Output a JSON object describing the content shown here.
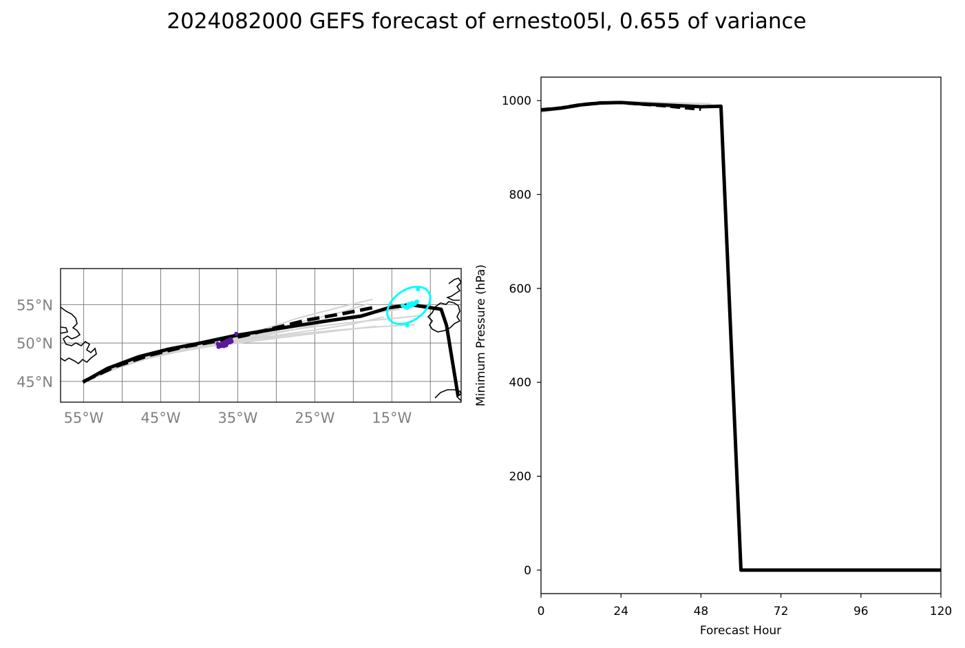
{
  "title": "2024082000 GEFS forecast of ernesto05l, 0.655 of variance",
  "colors": {
    "mean_track": "#000000",
    "ensemble_members": "#d3d3d3",
    "early_points": "#5a1a9a",
    "late_points": "#00ffff",
    "grid": "#808080",
    "coast": "#000000"
  },
  "chart_data": [
    {
      "type": "map",
      "xlabel": "",
      "ylabel": "",
      "lon_range": [
        -58,
        -6
      ],
      "lat_range": [
        42.3,
        59.7
      ],
      "lon_ticks": [
        -55,
        -45,
        -35,
        -25,
        -15
      ],
      "lon_tick_labels": [
        "55°W",
        "45°W",
        "35°W",
        "25°W",
        "15°W"
      ],
      "lat_ticks": [
        45,
        50,
        55
      ],
      "lat_tick_labels": [
        "45°N",
        "50°N",
        "55°N"
      ],
      "grid": true,
      "mean_track": {
        "lon": [
          -55.1,
          -51.9,
          -47.9,
          -44.0,
          -39.9,
          -35.2,
          -29.6,
          -24.0,
          -19.0,
          -15.4,
          -12.6,
          -8.6,
          -7.9,
          -6.4
        ],
        "lat": [
          44.9,
          46.7,
          48.2,
          49.2,
          50.0,
          51.0,
          51.9,
          52.8,
          53.5,
          54.6,
          55.0,
          54.4,
          52.3,
          43.1
        ]
      },
      "control_track": {
        "lon": [
          -55.0,
          -51.0,
          -46.5,
          -42.0,
          -38.0,
          -34.0,
          -30.0,
          -26.0,
          -21.0,
          -17.0
        ],
        "lat": [
          45.0,
          46.9,
          48.4,
          49.5,
          50.2,
          51.0,
          52.0,
          53.0,
          53.9,
          54.7
        ]
      },
      "ensemble_tracks": [
        {
          "lon": [
            -54.8,
            -51,
            -47,
            -43,
            -39,
            -35,
            -31,
            -27,
            -22,
            -17.5
          ],
          "lat": [
            45.1,
            46.9,
            48.3,
            49.3,
            50.1,
            51.0,
            52.0,
            53.3,
            54.6,
            55.7
          ]
        },
        {
          "lon": [
            -54.9,
            -51,
            -47,
            -43,
            -39,
            -35,
            -31,
            -27,
            -22,
            -18
          ],
          "lat": [
            45.0,
            46.8,
            48.2,
            49.2,
            50.0,
            50.8,
            51.7,
            52.7,
            53.9,
            55.1
          ]
        },
        {
          "lon": [
            -55.0,
            -51,
            -47,
            -43,
            -39,
            -35,
            -31,
            -27,
            -23,
            -19
          ],
          "lat": [
            44.9,
            46.6,
            48.0,
            49.0,
            49.7,
            50.4,
            51.1,
            51.9,
            52.8,
            53.7
          ]
        },
        {
          "lon": [
            -55.1,
            -51,
            -47,
            -43,
            -39,
            -35,
            -31,
            -27,
            -22,
            -17
          ],
          "lat": [
            44.9,
            46.6,
            47.9,
            48.8,
            49.5,
            50.0,
            50.5,
            51.0,
            51.6,
            52.2
          ]
        },
        {
          "lon": [
            -55.0,
            -51,
            -47,
            -43,
            -39,
            -35,
            -31,
            -27,
            -22,
            -17,
            -12
          ],
          "lat": [
            45.0,
            46.7,
            48.1,
            49.0,
            49.7,
            50.2,
            50.7,
            51.2,
            51.7,
            52.1,
            52.4
          ]
        },
        {
          "lon": [
            -55.0,
            -51,
            -47,
            -43,
            -39,
            -35,
            -31,
            -27,
            -22,
            -18,
            -14
          ],
          "lat": [
            45.0,
            46.8,
            48.2,
            49.2,
            50.0,
            50.8,
            51.5,
            52.3,
            53.1,
            53.8,
            54.4
          ]
        },
        {
          "lon": [
            -55.0,
            -51,
            -47,
            -43,
            -39,
            -35,
            -31,
            -26,
            -21,
            -16,
            -11
          ],
          "lat": [
            45.0,
            46.7,
            48.1,
            49.1,
            49.9,
            50.6,
            51.3,
            52.0,
            52.6,
            53.1,
            53.6
          ]
        },
        {
          "lon": [
            -55.1,
            -51,
            -47,
            -43,
            -39,
            -35,
            -30,
            -25,
            -20,
            -16
          ],
          "lat": [
            44.9,
            46.7,
            48.1,
            49.1,
            49.8,
            50.4,
            51.0,
            51.7,
            52.5,
            53.4
          ]
        },
        {
          "lon": [
            -54.9,
            -51,
            -47,
            -43,
            -39,
            -35,
            -31,
            -26,
            -21,
            -16,
            -12
          ],
          "lat": [
            45.1,
            46.9,
            48.3,
            49.3,
            50.1,
            50.9,
            51.8,
            52.6,
            53.4,
            54.2,
            54.9
          ]
        }
      ],
      "early_points": {
        "lon": [
          -37.5,
          -37.2,
          -36.9,
          -36.6,
          -36.3,
          -36.0,
          -35.8,
          -37.4,
          -37.0,
          -36.7,
          -36.4,
          -36.1,
          -35.9,
          -36.8,
          -36.5,
          -35.2,
          -37.6
        ],
        "lat": [
          49.5,
          49.6,
          49.7,
          49.8,
          50.0,
          50.1,
          50.2,
          49.8,
          50.0,
          50.1,
          50.3,
          50.4,
          50.5,
          49.6,
          49.7,
          51.2,
          49.9
        ]
      },
      "late_points": {
        "lon": [
          -12.2,
          -12.6,
          -12.9,
          -13.3,
          -12.4,
          -12.0,
          -11.9,
          -13.6,
          -12.8,
          -13.0,
          -11.7,
          -13.0,
          -11.6
        ],
        "lat": [
          55.0,
          54.8,
          54.9,
          54.7,
          55.2,
          55.1,
          55.3,
          54.9,
          55.1,
          54.6,
          55.4,
          52.3,
          57.0
        ]
      },
      "uncertainty_ellipse": {
        "center_lon": -12.8,
        "center_lat": 54.9,
        "semi_axis_lon": 3.1,
        "semi_axis_lat": 2.0,
        "rotation_deg": -35
      }
    },
    {
      "type": "line",
      "title": "",
      "xlabel": "Forecast Hour",
      "ylabel": "Minimum Pressure (hPa)",
      "xlim": [
        0,
        120
      ],
      "ylim": [
        -50,
        1050
      ],
      "x_ticks": [
        0,
        24,
        48,
        72,
        96,
        120
      ],
      "y_ticks": [
        0,
        200,
        400,
        600,
        800,
        1000
      ],
      "grid": false,
      "series": [
        {
          "role": "mean",
          "x": [
            0,
            6,
            12,
            18,
            24,
            30,
            36,
            42,
            48,
            54,
            60,
            66,
            72,
            78,
            84,
            90,
            96,
            102,
            108,
            114,
            120
          ],
          "y": [
            980,
            984,
            991,
            995,
            996,
            993,
            991,
            989,
            987,
            988,
            0,
            0,
            0,
            0,
            0,
            0,
            0,
            0,
            0,
            0,
            0
          ]
        },
        {
          "role": "control",
          "x": [
            0,
            6,
            12,
            18,
            24,
            30,
            36,
            42,
            48
          ],
          "y": [
            981,
            985,
            992,
            996,
            995,
            992,
            989,
            985,
            981
          ]
        },
        {
          "role": "member",
          "x": [
            0,
            6,
            12,
            18,
            24,
            30,
            36,
            42,
            48,
            51
          ],
          "y": [
            978,
            983,
            990,
            995,
            998,
            997,
            996,
            995,
            994,
            993
          ]
        },
        {
          "role": "member",
          "x": [
            0,
            6,
            12,
            18,
            24,
            30,
            36,
            42,
            48
          ],
          "y": [
            975,
            982,
            989,
            994,
            995,
            993,
            991,
            988,
            985
          ]
        },
        {
          "role": "member",
          "x": [
            0,
            6,
            12,
            18,
            24,
            30,
            36,
            42,
            48,
            54
          ],
          "y": [
            982,
            986,
            993,
            997,
            998,
            996,
            994,
            992,
            990,
            988
          ]
        },
        {
          "role": "member",
          "x": [
            0,
            6,
            12,
            18,
            24,
            30,
            36,
            42
          ],
          "y": [
            979,
            984,
            990,
            993,
            994,
            991,
            988,
            984
          ]
        }
      ]
    }
  ]
}
